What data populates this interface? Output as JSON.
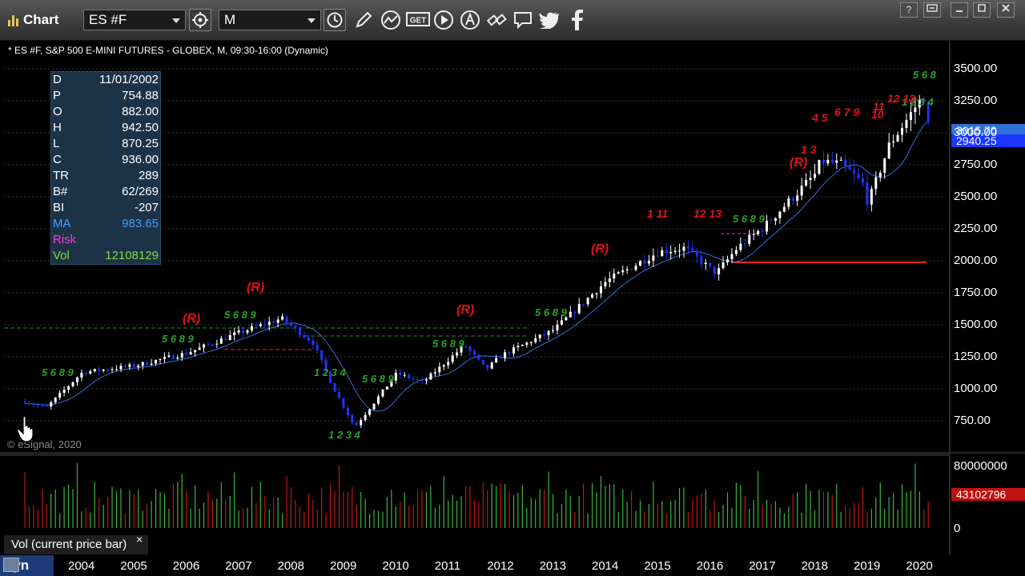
{
  "toolbar": {
    "title": "Chart",
    "symbol": "ES #F",
    "interval": "M",
    "get_label": "GET"
  },
  "chart": {
    "description": "* ES #F, S&P 500 E-MINI FUTURES - GLOBEX, M, 09:30-16:00 (Dynamic)",
    "copyright": "© eSignal, 2020",
    "pane_label": "Vol (current price bar)",
    "pane_close": "×",
    "dyn_label": "Dyn",
    "last_price_tag": "2940.25",
    "ma_price_tag": "3015.70",
    "volume_tag": "43102796",
    "volume_axis": [
      "80000000",
      "0"
    ],
    "price_axis": [
      "3500.00",
      "3250.00",
      "3000.00",
      "2750.00",
      "2500.00",
      "2250.00",
      "2000.00",
      "1750.00",
      "1500.00",
      "1250.00",
      "1000.00",
      "750.00"
    ],
    "years": [
      "2004",
      "2005",
      "2006",
      "2007",
      "2008",
      "2009",
      "2010",
      "2011",
      "2012",
      "2013",
      "2014",
      "2015",
      "2016",
      "2017",
      "2018",
      "2019",
      "2020"
    ],
    "colors": {
      "up": "#ffffff",
      "down": "#1a36ff",
      "ma": "#2f6fd8",
      "setup": "#2aa02a",
      "countdown": "#e21414",
      "level_red": "#ff2020",
      "level_green": "#2a8a2a",
      "risk": "#e020e0",
      "accent_blue": "#1d3b7a"
    }
  },
  "data_window": [
    {
      "key": "D",
      "value": "11/01/2002",
      "color": "#ffffff"
    },
    {
      "key": "P",
      "value": "754.88",
      "color": "#ffffff"
    },
    {
      "key": "O",
      "value": "882.00",
      "color": "#ffffff"
    },
    {
      "key": "H",
      "value": "942.50",
      "color": "#ffffff"
    },
    {
      "key": "L",
      "value": "870.25",
      "color": "#ffffff"
    },
    {
      "key": "C",
      "value": "936.00",
      "color": "#ffffff"
    },
    {
      "key": "TR",
      "value": "289",
      "color": "#ffffff"
    },
    {
      "key": "B#",
      "value": "62/269",
      "color": "#ffffff"
    },
    {
      "key": "BI",
      "value": "-207",
      "color": "#ffffff"
    },
    {
      "key": "MA",
      "value": "983.65",
      "color": "#3fa0ff"
    },
    {
      "key": "Risk",
      "value": "",
      "color": "#ff3ad8"
    },
    {
      "key": "Vol",
      "value": "12108129",
      "color": "#7fdc3f"
    }
  ],
  "annotations": {
    "r_marker": "(R)",
    "setup_labels": [
      "5 6 8 9",
      "1 2 3 4",
      "5 6 8"
    ],
    "countdown_labels": [
      "4 5",
      "6 7 9",
      "10",
      "11",
      "12 13",
      "12 13",
      "1 3",
      "1 11"
    ]
  }
}
